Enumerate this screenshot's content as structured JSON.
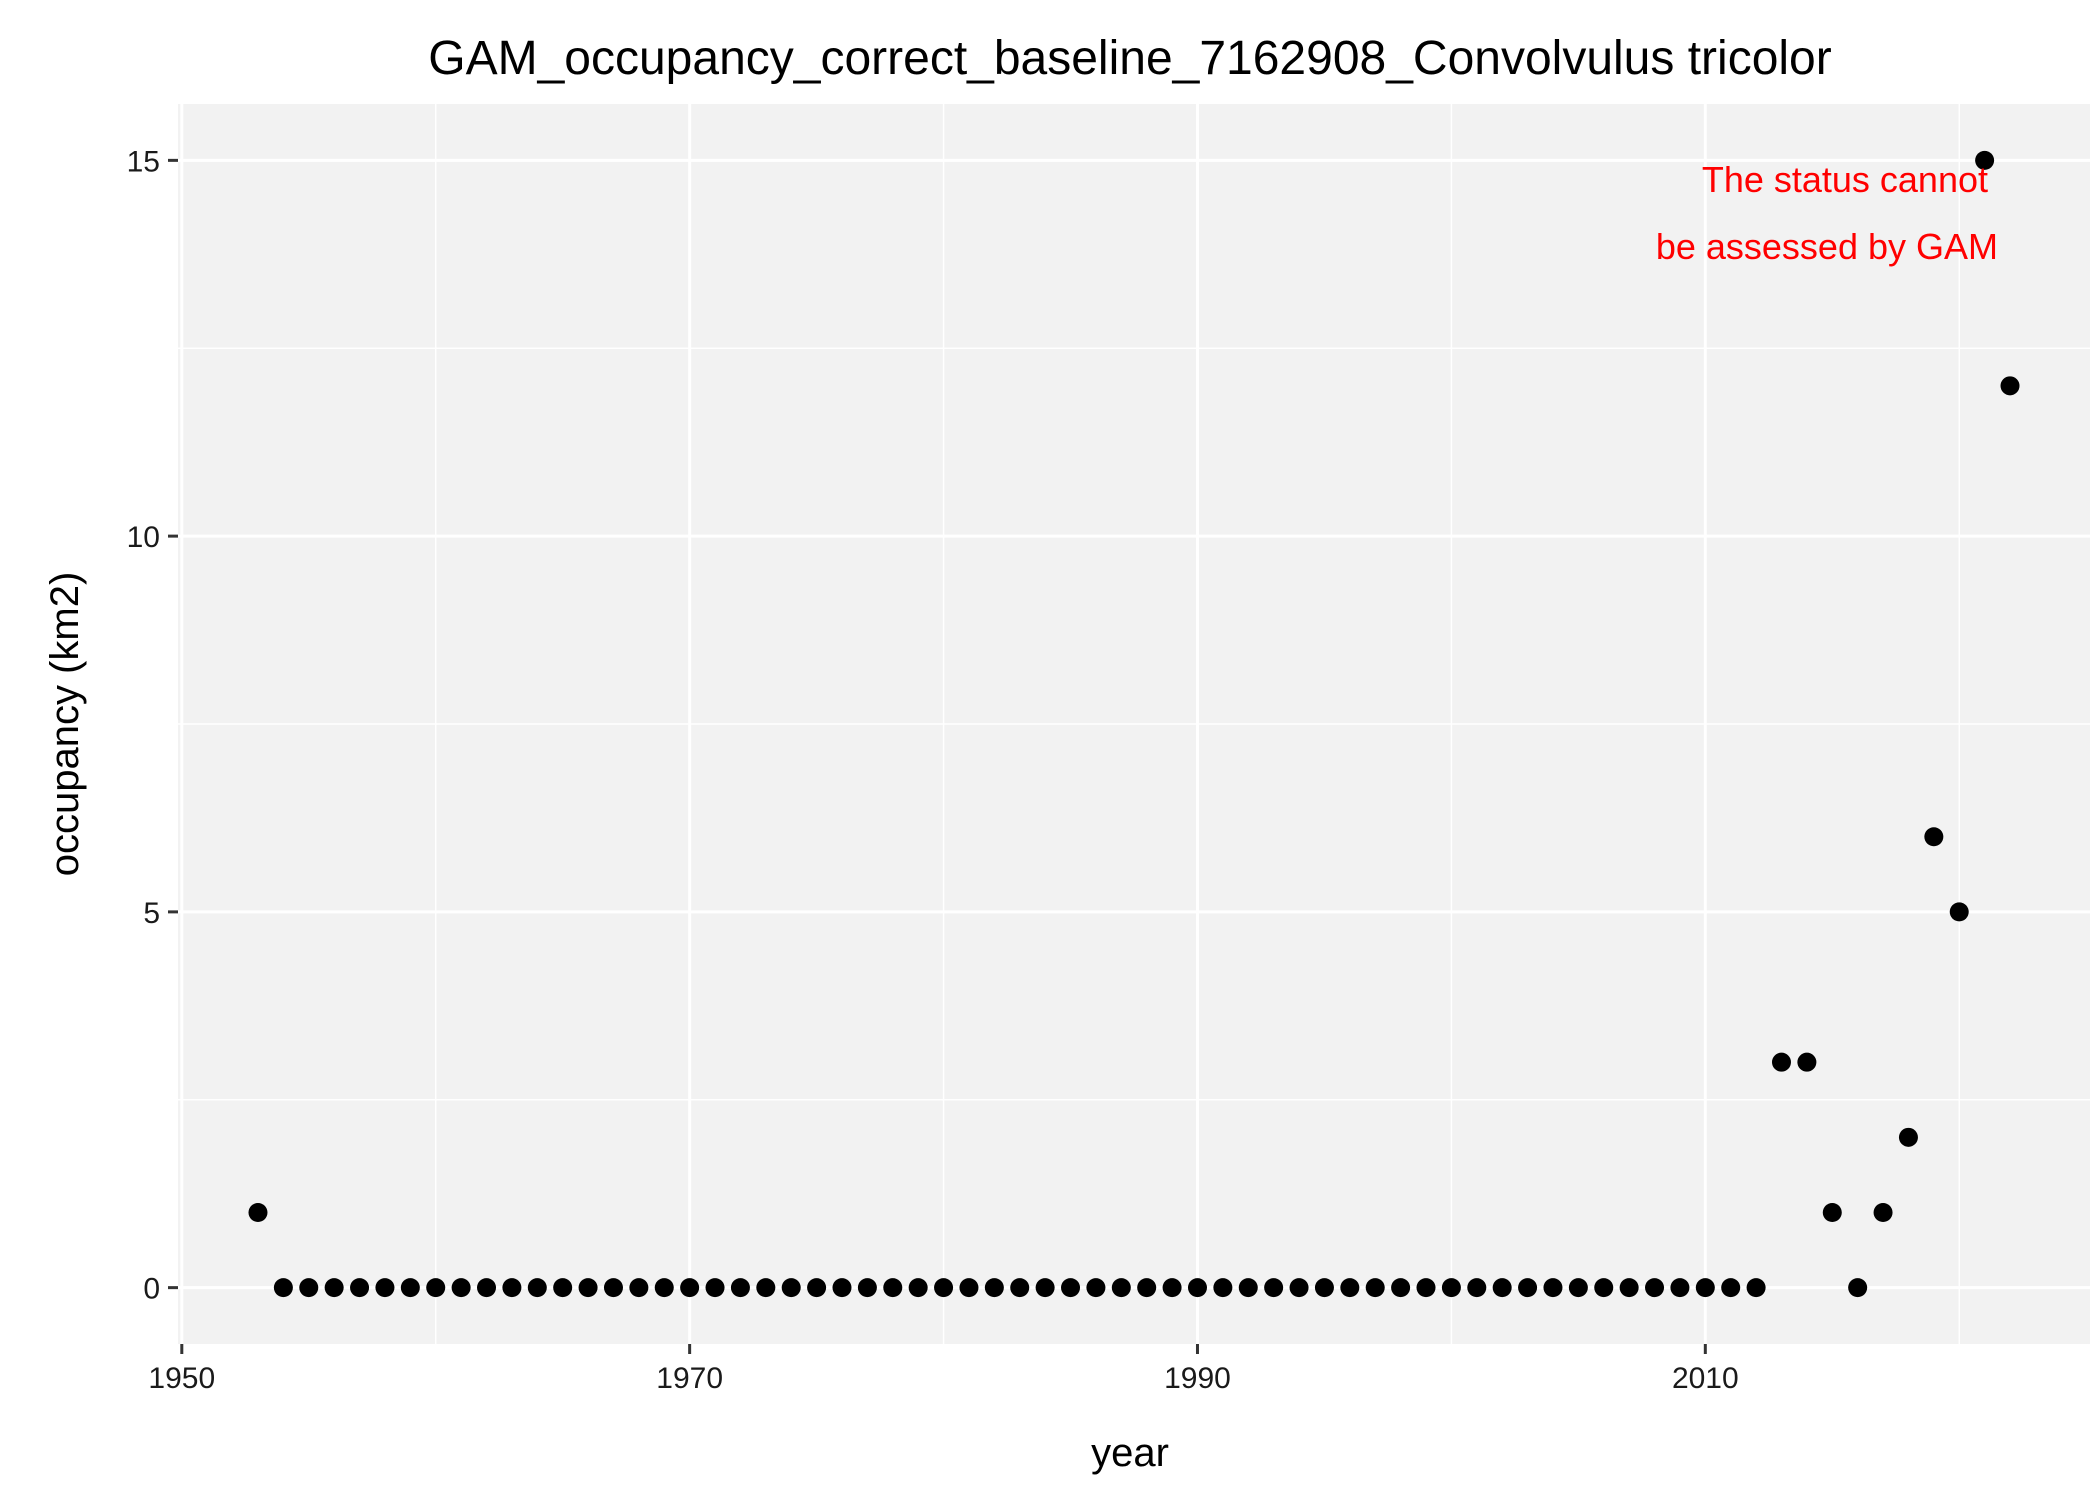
{
  "chart_data": {
    "type": "scatter",
    "title": "GAM_occupancy_correct_baseline_7162908_Convolvulus tricolor",
    "xlabel": "year",
    "ylabel": "occupancy (km2)",
    "xlim": [
      1949.85,
      2025.15
    ],
    "ylim": [
      -0.75,
      15.75
    ],
    "x_ticks": [
      1950,
      1970,
      1990,
      2010
    ],
    "x_tick_labels": [
      "1950",
      "1970",
      "1990",
      "2010"
    ],
    "y_ticks": [
      0,
      5,
      10,
      15
    ],
    "y_tick_labels": [
      "0",
      "5",
      "10",
      "15"
    ],
    "grid": true,
    "legend": "none",
    "point_color": "#000000",
    "panel_color": "#f2f2f2",
    "grid_color": "#ffffff",
    "annotation": {
      "lines": [
        "The status cannot",
        "be assessed by GAM"
      ],
      "color": "#ff0000",
      "placement": "top-right"
    },
    "series": [
      {
        "x": [
          1953,
          1954,
          1955,
          1956,
          1957,
          1958,
          1959,
          1960,
          1961,
          1962,
          1963,
          1964,
          1965,
          1966,
          1967,
          1968,
          1969,
          1970,
          1971,
          1972,
          1973,
          1974,
          1975,
          1976,
          1977,
          1978,
          1979,
          1980,
          1981,
          1982,
          1983,
          1984,
          1985,
          1986,
          1987,
          1988,
          1989,
          1990,
          1991,
          1992,
          1993,
          1994,
          1995,
          1996,
          1997,
          1998,
          1999,
          2000,
          2001,
          2002,
          2003,
          2004,
          2005,
          2006,
          2007,
          2008,
          2009,
          2010,
          2011,
          2012,
          2013,
          2014,
          2015,
          2016,
          2017,
          2018,
          2019,
          2020,
          2021,
          2022
        ],
        "y": [
          1,
          0,
          0,
          0,
          0,
          0,
          0,
          0,
          0,
          0,
          0,
          0,
          0,
          0,
          0,
          0,
          0,
          0,
          0,
          0,
          0,
          0,
          0,
          0,
          0,
          0,
          0,
          0,
          0,
          0,
          0,
          0,
          0,
          0,
          0,
          0,
          0,
          0,
          0,
          0,
          0,
          0,
          0,
          0,
          0,
          0,
          0,
          0,
          0,
          0,
          0,
          0,
          0,
          0,
          0,
          0,
          0,
          0,
          0,
          0,
          3,
          3,
          1,
          0,
          1,
          2,
          6,
          5,
          15,
          12
        ]
      }
    ]
  }
}
